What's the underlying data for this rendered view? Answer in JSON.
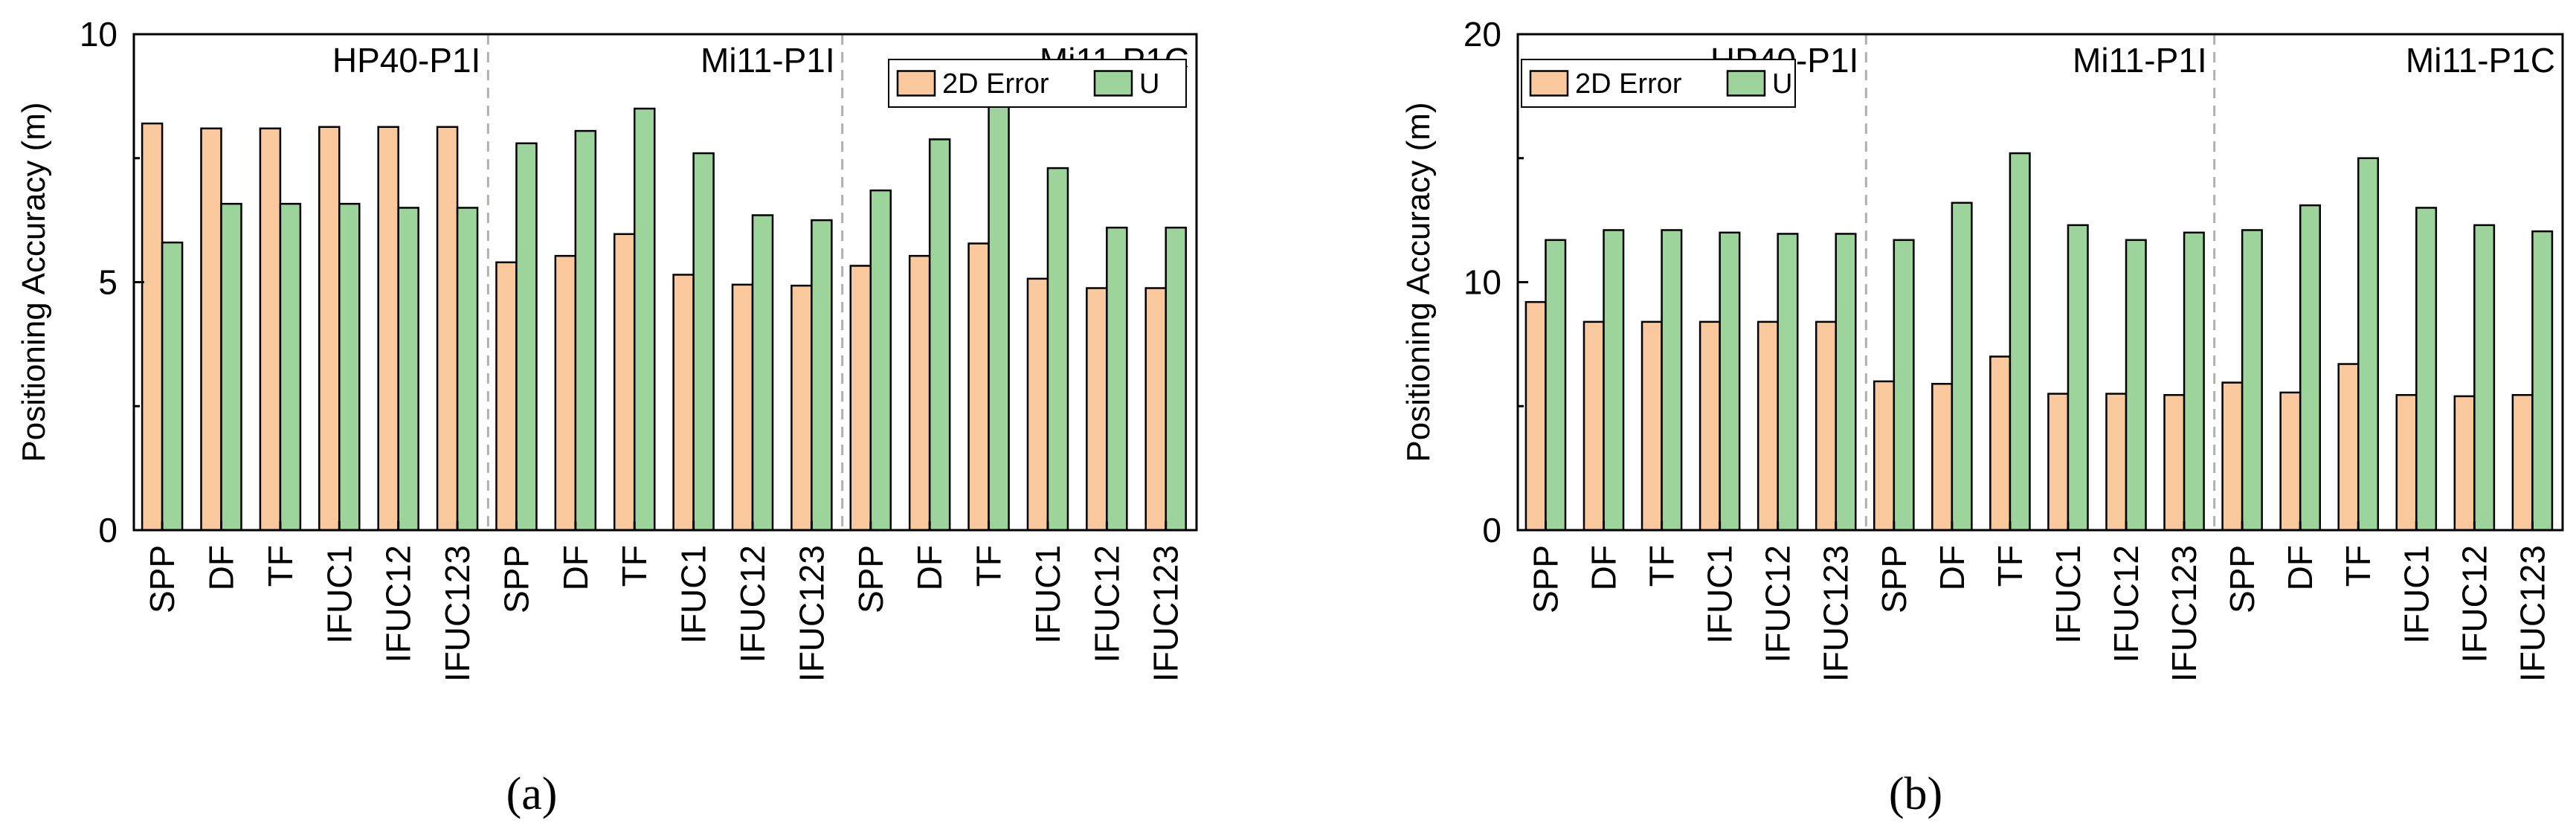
{
  "colors": {
    "error_fill": "#F9C89C",
    "u_fill": "#9DD49C",
    "bar_stroke": "#000000",
    "divider": "#b0b0b0"
  },
  "chart_data": [
    {
      "type": "bar",
      "panel_label": "(a)",
      "title": "",
      "xlabel": "",
      "ylabel": "Positioning Accuracy (m)",
      "ylim": [
        0,
        10
      ],
      "yticks": [
        "0",
        "5",
        "10"
      ],
      "grid": false,
      "legend_position": "top-right",
      "groups": [
        "HP40-P1I",
        "Mi11-P1I",
        "Mi11-P1C"
      ],
      "categories": [
        "SPP",
        "DF",
        "TF",
        "IFUC1",
        "IFUC12",
        "IFUC123",
        "SPP",
        "DF",
        "TF",
        "IFUC1",
        "IFUC12",
        "IFUC123",
        "SPP",
        "DF",
        "TF",
        "IFUC1",
        "IFUC12",
        "IFUC123"
      ],
      "series": [
        {
          "name": "2D Error",
          "values": [
            8.2,
            8.1,
            8.1,
            8.13,
            8.13,
            8.13,
            5.4,
            5.53,
            5.97,
            5.15,
            4.95,
            4.93,
            5.33,
            5.53,
            5.78,
            5.07,
            4.88,
            4.88
          ]
        },
        {
          "name": "U",
          "values": [
            5.8,
            6.58,
            6.58,
            6.58,
            6.5,
            6.5,
            7.8,
            8.05,
            8.5,
            7.6,
            6.35,
            6.25,
            6.85,
            7.88,
            8.6,
            7.3,
            6.1,
            6.1
          ]
        }
      ]
    },
    {
      "type": "bar",
      "panel_label": "(b)",
      "title": "",
      "xlabel": "",
      "ylabel": "Positioning Accuracy (m)",
      "ylim": [
        0,
        20
      ],
      "yticks": [
        "0",
        "10",
        "20"
      ],
      "grid": false,
      "legend_position": "top-left",
      "groups": [
        "HP40-P1I",
        "Mi11-P1I",
        "Mi11-P1C"
      ],
      "categories": [
        "SPP",
        "DF",
        "TF",
        "IFUC1",
        "IFUC12",
        "IFUC123",
        "SPP",
        "DF",
        "TF",
        "IFUC1",
        "IFUC12",
        "IFUC123",
        "SPP",
        "DF",
        "TF",
        "IFUC1",
        "IFUC12",
        "IFUC123"
      ],
      "series": [
        {
          "name": "2D Error",
          "values": [
            9.2,
            8.4,
            8.4,
            8.4,
            8.4,
            8.4,
            6.0,
            5.9,
            7.0,
            5.5,
            5.5,
            5.45,
            5.95,
            5.55,
            6.7,
            5.45,
            5.4,
            5.45
          ]
        },
        {
          "name": "U",
          "values": [
            11.7,
            12.1,
            12.1,
            12.0,
            11.95,
            11.95,
            11.7,
            13.2,
            15.2,
            12.3,
            11.7,
            12.0,
            12.1,
            13.1,
            15.0,
            13.0,
            12.3,
            12.05
          ]
        }
      ]
    }
  ]
}
